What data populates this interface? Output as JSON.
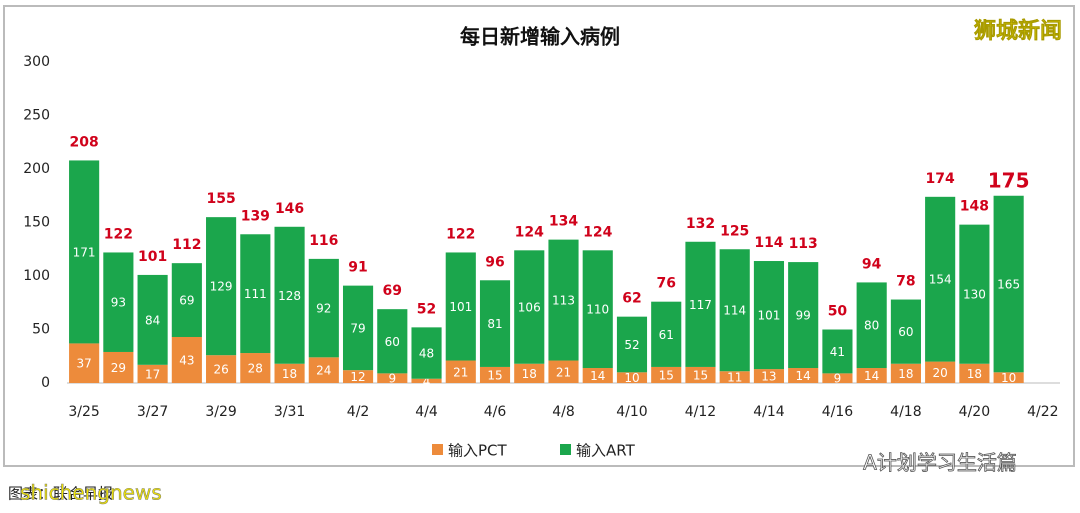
{
  "chart_data": {
    "type": "stacked_bar",
    "title": "每日新增输入病例",
    "categories": [
      "3/25",
      null,
      "3/27",
      null,
      "3/29",
      null,
      "3/31",
      null,
      "4/2",
      null,
      "4/4",
      null,
      "4/6",
      null,
      "4/8",
      null,
      "4/10",
      null,
      "4/12",
      null,
      "4/14",
      null,
      "4/16",
      null,
      "4/18",
      null,
      "4/20",
      null,
      "4/22"
    ],
    "series": [
      {
        "name": "输入PCT",
        "color": "#ed8b3b",
        "values": [
          37,
          29,
          17,
          43,
          26,
          28,
          18,
          24,
          12,
          9,
          4,
          21,
          15,
          18,
          21,
          14,
          10,
          15,
          15,
          11,
          13,
          14,
          9,
          14,
          18,
          20,
          18,
          10,
          null
        ]
      },
      {
        "name": "输入ART",
        "color": "#1ba64c",
        "values": [
          171,
          93,
          84,
          69,
          129,
          111,
          128,
          92,
          79,
          60,
          48,
          101,
          81,
          106,
          113,
          110,
          52,
          61,
          117,
          114,
          101,
          99,
          41,
          80,
          60,
          154,
          130,
          165,
          null
        ]
      }
    ],
    "totals": [
      208,
      122,
      101,
      112,
      155,
      139,
      146,
      116,
      91,
      69,
      52,
      122,
      96,
      124,
      134,
      124,
      62,
      76,
      132,
      125,
      114,
      113,
      50,
      94,
      78,
      174,
      148,
      175,
      null
    ],
    "ylim": [
      0,
      300
    ],
    "yticks": [
      0,
      50,
      100,
      150,
      200,
      250,
      300
    ],
    "grid": false
  },
  "watermark": "狮城新闻",
  "footer": {
    "source": "图表：联合早报",
    "site": "shichengnews",
    "account": "A计划学习生活篇"
  }
}
